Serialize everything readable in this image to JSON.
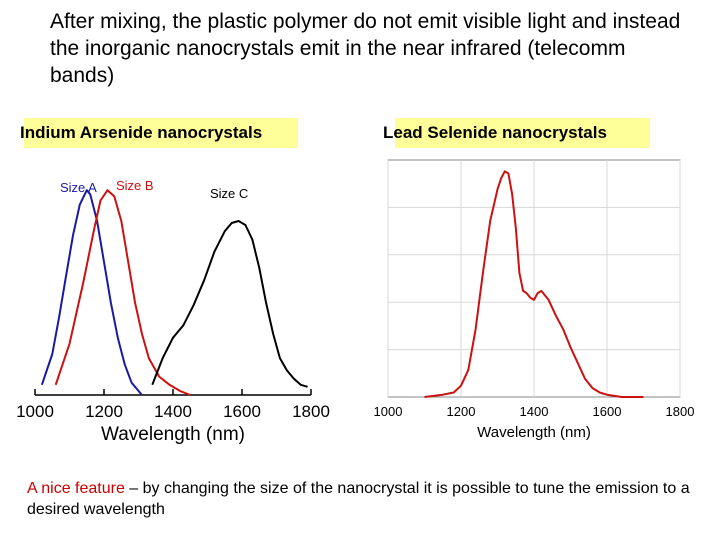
{
  "intro_text": "After mixing, the plastic polymer do not emit visible light and instead the inorganic nanocrystals emit in the near infrared (telecomm bands)",
  "panels": {
    "left_title": "Indium Arsenide nanocrystals",
    "right_title": "Lead Selenide nanocrystals"
  },
  "note": {
    "highlight": "A nice feature",
    "rest": " – by changing the size of the nanocrystal it is possible to tune the emission to a desired wavelength"
  },
  "colors": {
    "blue": "#1a1aa0",
    "red": "#cc1111",
    "black": "#000000",
    "highlight": "#ffff99"
  },
  "chart_data": [
    {
      "type": "line",
      "title": "Indium Arsenide nanocrystals",
      "xlabel": "Wavelength (nm)",
      "ylabel": "",
      "xlim": [
        1000,
        1800
      ],
      "ylim": [
        0,
        1.05
      ],
      "xticks": [
        1000,
        1200,
        1400,
        1600,
        1800
      ],
      "grid": false,
      "series": [
        {
          "name": "Size A",
          "color": "#1a1aa0",
          "x": [
            1020,
            1050,
            1070,
            1090,
            1110,
            1130,
            1150,
            1160,
            1180,
            1200,
            1220,
            1240,
            1260,
            1280,
            1300,
            1310
          ],
          "y": [
            0.05,
            0.2,
            0.38,
            0.58,
            0.78,
            0.93,
            1.0,
            0.98,
            0.85,
            0.65,
            0.45,
            0.28,
            0.15,
            0.06,
            0.02,
            0
          ]
        },
        {
          "name": "Size B",
          "color": "#cc1111",
          "x": [
            1060,
            1100,
            1140,
            1170,
            1190,
            1210,
            1230,
            1250,
            1270,
            1290,
            1310,
            1330,
            1360,
            1390,
            1420,
            1450
          ],
          "y": [
            0.05,
            0.25,
            0.55,
            0.8,
            0.95,
            1.0,
            0.97,
            0.85,
            0.65,
            0.45,
            0.3,
            0.18,
            0.09,
            0.05,
            0.02,
            0
          ]
        },
        {
          "name": "Size C",
          "color": "#000000",
          "x": [
            1340,
            1370,
            1400,
            1430,
            1460,
            1490,
            1520,
            1550,
            1570,
            1590,
            1610,
            1630,
            1650,
            1670,
            1690,
            1710,
            1730,
            1750,
            1770,
            1790
          ],
          "y": [
            0.05,
            0.18,
            0.28,
            0.34,
            0.44,
            0.56,
            0.7,
            0.8,
            0.84,
            0.85,
            0.83,
            0.76,
            0.62,
            0.45,
            0.3,
            0.18,
            0.12,
            0.08,
            0.05,
            0.04
          ]
        }
      ]
    },
    {
      "type": "line",
      "title": "Lead Selenide nanocrystals",
      "xlabel": "Wavelength (nm)",
      "ylabel": "",
      "xlim": [
        1000,
        1800
      ],
      "ylim": [
        0,
        1.05
      ],
      "xticks": [
        1000,
        1200,
        1400,
        1600,
        1800
      ],
      "grid": true,
      "series": [
        {
          "name": "",
          "color": "#cc1111",
          "x": [
            1100,
            1150,
            1180,
            1200,
            1220,
            1240,
            1260,
            1280,
            1300,
            1310,
            1320,
            1330,
            1340,
            1350,
            1360,
            1370,
            1380,
            1390,
            1400,
            1410,
            1420,
            1440,
            1460,
            1480,
            1500,
            1520,
            1540,
            1560,
            1580,
            1600,
            1640,
            1700
          ],
          "y": [
            0,
            0.01,
            0.02,
            0.05,
            0.12,
            0.3,
            0.55,
            0.78,
            0.92,
            0.97,
            1.0,
            0.99,
            0.9,
            0.75,
            0.55,
            0.47,
            0.46,
            0.44,
            0.43,
            0.46,
            0.47,
            0.43,
            0.36,
            0.3,
            0.22,
            0.15,
            0.08,
            0.04,
            0.02,
            0.01,
            0,
            0
          ]
        }
      ]
    }
  ],
  "series_labels": [
    "Size A",
    "Size B",
    "Size C"
  ]
}
